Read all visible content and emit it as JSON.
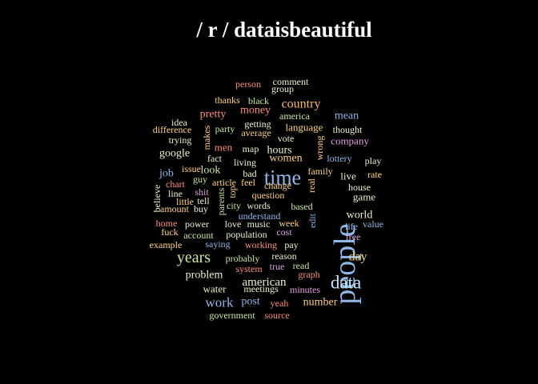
{
  "chart_data": {
    "type": "wordcloud",
    "title": "/ r / dataisbeautiful",
    "colors": [
      "#ff8c7a",
      "#8fb8e8",
      "#ffd27f",
      "#c8e6a0",
      "#e4a0e4",
      "#f0f0d0"
    ],
    "words": [
      {
        "text": "people",
        "size": 38,
        "color": "#8fb8e8",
        "rotate": -90
      },
      {
        "text": "time",
        "size": 26,
        "color": "#8fb8e8",
        "rotate": 0
      },
      {
        "text": "data",
        "size": 23,
        "color": "#c8e6ff",
        "rotate": 0
      },
      {
        "text": "years",
        "size": 20,
        "color": "#c8e6a0",
        "rotate": 0
      },
      {
        "text": "country",
        "size": 16,
        "color": "#ffb870",
        "rotate": 0
      },
      {
        "text": "day",
        "size": 16,
        "color": "#ffd27f",
        "rotate": 0
      },
      {
        "text": "american",
        "size": 15,
        "color": "#f0f0d0",
        "rotate": 0
      },
      {
        "text": "work",
        "size": 17,
        "color": "#8fb8e8",
        "rotate": 0
      },
      {
        "text": "women",
        "size": 14,
        "color": "#ffd27f",
        "rotate": 0
      },
      {
        "text": "money",
        "size": 14,
        "color": "#ff8c7a",
        "rotate": 0
      },
      {
        "text": "pretty",
        "size": 14,
        "color": "#ff8c7a",
        "rotate": 0
      },
      {
        "text": "mean",
        "size": 14,
        "color": "#8fb8e8",
        "rotate": 0
      },
      {
        "text": "problem",
        "size": 14,
        "color": "#f0f0d0",
        "rotate": 0
      },
      {
        "text": "number",
        "size": 14,
        "color": "#ffd27f",
        "rotate": 0
      },
      {
        "text": "post",
        "size": 14,
        "color": "#8fb8e8",
        "rotate": 0
      },
      {
        "text": "job",
        "size": 14,
        "color": "#8fb8e8",
        "rotate": 0
      },
      {
        "text": "look",
        "size": 14,
        "color": "#c8e6a0",
        "rotate": 0
      },
      {
        "text": "hours",
        "size": 14,
        "color": "#f0f0d0",
        "rotate": 0
      },
      {
        "text": "google",
        "size": 14,
        "color": "#f0f0d0",
        "rotate": 0
      },
      {
        "text": "world",
        "size": 14,
        "color": "#f0f0d0",
        "rotate": 0
      },
      {
        "text": "language",
        "size": 13,
        "color": "#ffd27f",
        "rotate": 0
      },
      {
        "text": "company",
        "size": 13,
        "color": "#e4a0e4",
        "rotate": 0
      },
      {
        "text": "game",
        "size": 13,
        "color": "#f0f0d0",
        "rotate": 0
      },
      {
        "text": "live",
        "size": 13,
        "color": "#f0f0d0",
        "rotate": 0
      },
      {
        "text": "men",
        "size": 13,
        "color": "#ff8c7a",
        "rotate": 0
      },
      {
        "text": "water",
        "size": 13,
        "color": "#f0f0d0",
        "rotate": 0
      },
      {
        "text": "person",
        "size": 12,
        "color": "#ff8c7a",
        "rotate": 0
      },
      {
        "text": "comment",
        "size": 12,
        "color": "#f0f0d0",
        "rotate": 0
      },
      {
        "text": "group",
        "size": 12,
        "color": "#f0f0d0",
        "rotate": 0
      },
      {
        "text": "thanks",
        "size": 12,
        "color": "#ffd27f",
        "rotate": 0
      },
      {
        "text": "black",
        "size": 12,
        "color": "#c8e6a0",
        "rotate": 0
      },
      {
        "text": "america",
        "size": 12,
        "color": "#c8e6a0",
        "rotate": 0
      },
      {
        "text": "idea",
        "size": 12,
        "color": "#f0f0d0",
        "rotate": 0
      },
      {
        "text": "party",
        "size": 12,
        "color": "#c8e6a0",
        "rotate": 0
      },
      {
        "text": "getting",
        "size": 12,
        "color": "#f0f0d0",
        "rotate": 0
      },
      {
        "text": "average",
        "size": 12,
        "color": "#ffd27f",
        "rotate": 0
      },
      {
        "text": "thought",
        "size": 12,
        "color": "#f0f0d0",
        "rotate": 0
      },
      {
        "text": "difference",
        "size": 12,
        "color": "#ffd27f",
        "rotate": 0
      },
      {
        "text": "trying",
        "size": 12,
        "color": "#f0f0d0",
        "rotate": 0
      },
      {
        "text": "makes",
        "size": 12,
        "color": "#ffd27f",
        "rotate": -90
      },
      {
        "text": "vote",
        "size": 12,
        "color": "#f0f0d0",
        "rotate": 0
      },
      {
        "text": "map",
        "size": 12,
        "color": "#f0f0d0",
        "rotate": 0
      },
      {
        "text": "wrong",
        "size": 12,
        "color": "#ffd27f",
        "rotate": -90
      },
      {
        "text": "lottery",
        "size": 12,
        "color": "#8fb8e8",
        "rotate": 0
      },
      {
        "text": "play",
        "size": 12,
        "color": "#f0f0d0",
        "rotate": 0
      },
      {
        "text": "fact",
        "size": 12,
        "color": "#f0f0d0",
        "rotate": 0
      },
      {
        "text": "living",
        "size": 12,
        "color": "#f0f0d0",
        "rotate": 0
      },
      {
        "text": "family",
        "size": 12,
        "color": "#ffd27f",
        "rotate": 0
      },
      {
        "text": "issue",
        "size": 12,
        "color": "#ffd27f",
        "rotate": 0
      },
      {
        "text": "bad",
        "size": 12,
        "color": "#f0f0d0",
        "rotate": 0
      },
      {
        "text": "rate",
        "size": 12,
        "color": "#ffd27f",
        "rotate": 0
      },
      {
        "text": "guy",
        "size": 12,
        "color": "#c8e6a0",
        "rotate": 0
      },
      {
        "text": "article",
        "size": 12,
        "color": "#ffd27f",
        "rotate": 0
      },
      {
        "text": "feel",
        "size": 12,
        "color": "#ffd27f",
        "rotate": 0
      },
      {
        "text": "change",
        "size": 12,
        "color": "#ffd27f",
        "rotate": 0
      },
      {
        "text": "house",
        "size": 12,
        "color": "#f0f0d0",
        "rotate": 0
      },
      {
        "text": "chart",
        "size": 12,
        "color": "#ff8c7a",
        "rotate": 0
      },
      {
        "text": "believe",
        "size": 12,
        "color": "#f0f0d0",
        "rotate": -90
      },
      {
        "text": "line",
        "size": 12,
        "color": "#f0f0d0",
        "rotate": 0
      },
      {
        "text": "shit",
        "size": 12,
        "color": "#e4a0e4",
        "rotate": 0
      },
      {
        "text": "top",
        "size": 12,
        "color": "#ffd27f",
        "rotate": -90
      },
      {
        "text": "question",
        "size": 12,
        "color": "#ffd27f",
        "rotate": 0
      },
      {
        "text": "real",
        "size": 12,
        "color": "#ffd27f",
        "rotate": -90
      },
      {
        "text": "little",
        "size": 12,
        "color": "#ffd27f",
        "rotate": 0
      },
      {
        "text": "tell",
        "size": 12,
        "color": "#f0f0d0",
        "rotate": 0
      },
      {
        "text": "parents",
        "size": 12,
        "color": "#c8e6a0",
        "rotate": -90
      },
      {
        "text": "city",
        "size": 12,
        "color": "#c8e6a0",
        "rotate": 0
      },
      {
        "text": "words",
        "size": 12,
        "color": "#f0f0d0",
        "rotate": 0
      },
      {
        "text": "based",
        "size": 12,
        "color": "#c8e6a0",
        "rotate": 0
      },
      {
        "text": "amount",
        "size": 12,
        "color": "#ffd27f",
        "rotate": 0
      },
      {
        "text": "buy",
        "size": 12,
        "color": "#f0f0d0",
        "rotate": 0
      },
      {
        "text": "understand",
        "size": 12,
        "color": "#8fb8e8",
        "rotate": 0
      },
      {
        "text": "edit",
        "size": 12,
        "color": "#8fb8e8",
        "rotate": -90
      },
      {
        "text": "home",
        "size": 12,
        "color": "#ff8c7a",
        "rotate": 0
      },
      {
        "text": "power",
        "size": 12,
        "color": "#f0f0d0",
        "rotate": 0
      },
      {
        "text": "love",
        "size": 12,
        "color": "#f0f0d0",
        "rotate": 0
      },
      {
        "text": "music",
        "size": 12,
        "color": "#f0f0d0",
        "rotate": 0
      },
      {
        "text": "week",
        "size": 12,
        "color": "#ffd27f",
        "rotate": 0
      },
      {
        "text": "life",
        "size": 12,
        "color": "#8fb8e8",
        "rotate": 0
      },
      {
        "text": "value",
        "size": 12,
        "color": "#8fb8e8",
        "rotate": 0
      },
      {
        "text": "fuck",
        "size": 12,
        "color": "#ffd27f",
        "rotate": 0
      },
      {
        "text": "account",
        "size": 12,
        "color": "#c8e6a0",
        "rotate": 0
      },
      {
        "text": "population",
        "size": 12,
        "color": "#f0f0d0",
        "rotate": 0
      },
      {
        "text": "cost",
        "size": 12,
        "color": "#e4a0e4",
        "rotate": 0
      },
      {
        "text": "free",
        "size": 12,
        "color": "#e4a0e4",
        "rotate": 0
      },
      {
        "text": "example",
        "size": 12,
        "color": "#ffd27f",
        "rotate": 0
      },
      {
        "text": "saying",
        "size": 12,
        "color": "#8fb8e8",
        "rotate": 0
      },
      {
        "text": "working",
        "size": 12,
        "color": "#ff8c7a",
        "rotate": 0
      },
      {
        "text": "pay",
        "size": 12,
        "color": "#f0f0d0",
        "rotate": 0
      },
      {
        "text": "probably",
        "size": 12,
        "color": "#c8e6a0",
        "rotate": 0
      },
      {
        "text": "reason",
        "size": 12,
        "color": "#f0f0d0",
        "rotate": 0
      },
      {
        "text": "system",
        "size": 12,
        "color": "#ff8c7a",
        "rotate": 0
      },
      {
        "text": "true",
        "size": 12,
        "color": "#e4a0e4",
        "rotate": 0
      },
      {
        "text": "read",
        "size": 12,
        "color": "#c8e6a0",
        "rotate": 0
      },
      {
        "text": "graph",
        "size": 12,
        "color": "#ff8c7a",
        "rotate": 0
      },
      {
        "text": "meetings",
        "size": 12,
        "color": "#f0f0d0",
        "rotate": 0
      },
      {
        "text": "minutes",
        "size": 12,
        "color": "#e4a0e4",
        "rotate": 0
      },
      {
        "text": "yeah",
        "size": 12,
        "color": "#ff8c7a",
        "rotate": 0
      },
      {
        "text": "government",
        "size": 12,
        "color": "#c8e6a0",
        "rotate": 0
      },
      {
        "text": "source",
        "size": 12,
        "color": "#ff8c7a",
        "rotate": 0
      }
    ]
  }
}
